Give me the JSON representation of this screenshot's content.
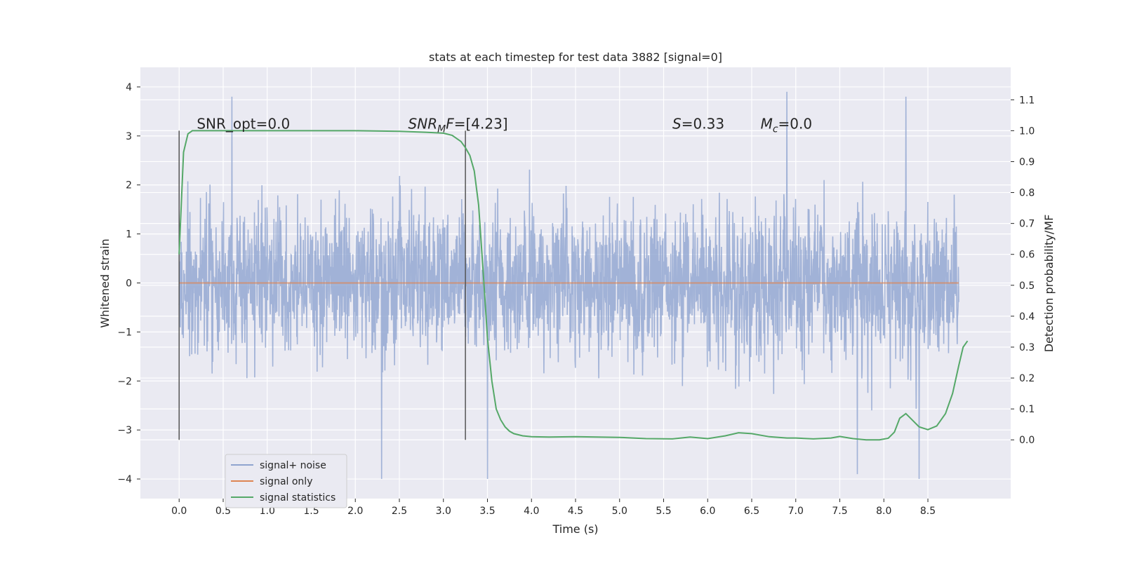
{
  "chart_data": {
    "type": "line",
    "title": "stats at each timestep for test data 3882 [signal=0]",
    "xlabel": "Time (s)",
    "ylabel": "Whitened strain",
    "y2label": "Detection probability/MF",
    "xlim": [
      -0.44,
      9.44
    ],
    "ylim": [
      -4.4,
      4.4
    ],
    "y2lim": [
      -0.19,
      1.205
    ],
    "x_ticks": [
      "0.0",
      "0.5",
      "1.0",
      "1.5",
      "2.0",
      "2.5",
      "3.0",
      "3.5",
      "4.0",
      "4.5",
      "5.0",
      "5.5",
      "6.0",
      "6.5",
      "7.0",
      "7.5",
      "8.0",
      "8.5"
    ],
    "y_ticks": [
      "4",
      "3",
      "2",
      "1",
      "0",
      "−1",
      "−2",
      "−3",
      "−4"
    ],
    "y2_ticks": [
      "1.1",
      "1.0",
      "0.9",
      "0.8",
      "0.7",
      "0.6",
      "0.5",
      "0.4",
      "0.3",
      "0.2",
      "0.1",
      "0.0"
    ],
    "grid": true,
    "legend_position": "lower-left",
    "series": [
      {
        "name": "signal+ noise",
        "color": "#8fa4cf",
        "noise_std": 0.75,
        "x_range": [
          0.0,
          8.85
        ],
        "peaks": [
          [
            0.6,
            3.8
          ],
          [
            2.3,
            -4.0
          ],
          [
            3.5,
            -4.0
          ],
          [
            6.9,
            3.9
          ],
          [
            7.7,
            -3.9
          ],
          [
            8.4,
            -4.0
          ],
          [
            8.25,
            3.8
          ]
        ]
      },
      {
        "name": "signal only",
        "color": "#dd8452",
        "x": [
          0.0,
          8.85
        ],
        "y": [
          0.0,
          0.0
        ]
      },
      {
        "name": "signal statistics",
        "color": "#55a868",
        "axis": "right",
        "x": [
          0.0,
          0.05,
          0.1,
          0.15,
          0.2,
          0.3,
          0.5,
          1.0,
          1.5,
          2.0,
          2.5,
          2.8,
          3.0,
          3.1,
          3.2,
          3.25,
          3.3,
          3.35,
          3.4,
          3.45,
          3.5,
          3.55,
          3.6,
          3.65,
          3.7,
          3.75,
          3.8,
          3.9,
          4.0,
          4.2,
          4.5,
          5.0,
          5.3,
          5.6,
          5.8,
          6.0,
          6.2,
          6.35,
          6.5,
          6.7,
          6.9,
          7.0,
          7.2,
          7.4,
          7.5,
          7.65,
          7.8,
          7.95,
          8.05,
          8.12,
          8.18,
          8.25,
          8.32,
          8.4,
          8.5,
          8.6,
          8.7,
          8.78,
          8.85,
          8.9,
          8.95
        ],
        "y": [
          0.6,
          0.93,
          0.99,
          1.0,
          1.0,
          1.0,
          1.0,
          1.0,
          1.0,
          1.0,
          0.998,
          0.995,
          0.992,
          0.985,
          0.965,
          0.945,
          0.92,
          0.87,
          0.76,
          0.55,
          0.33,
          0.19,
          0.1,
          0.065,
          0.042,
          0.028,
          0.02,
          0.013,
          0.01,
          0.009,
          0.01,
          0.008,
          0.004,
          0.003,
          0.009,
          0.004,
          0.013,
          0.023,
          0.02,
          0.01,
          0.006,
          0.006,
          0.003,
          0.006,
          0.011,
          0.004,
          0.0,
          0.0,
          0.005,
          0.025,
          0.07,
          0.085,
          0.065,
          0.042,
          0.033,
          0.045,
          0.085,
          0.15,
          0.24,
          0.3,
          0.32
        ]
      }
    ],
    "annotations": [
      {
        "prefix": "SNR_opt",
        "suffix": "=0.0",
        "x": 0.2
      },
      {
        "prefix": "SNR",
        "sub": "M",
        "suffix": "F=[4.23]",
        "x": 2.6
      },
      {
        "prefix": "S",
        "suffix": "=0.33",
        "x": 5.6
      },
      {
        "prefix": "M",
        "sub": "c",
        "suffix": "=0.0",
        "x": 6.6
      }
    ],
    "vlines": [
      0.0,
      3.25
    ]
  }
}
